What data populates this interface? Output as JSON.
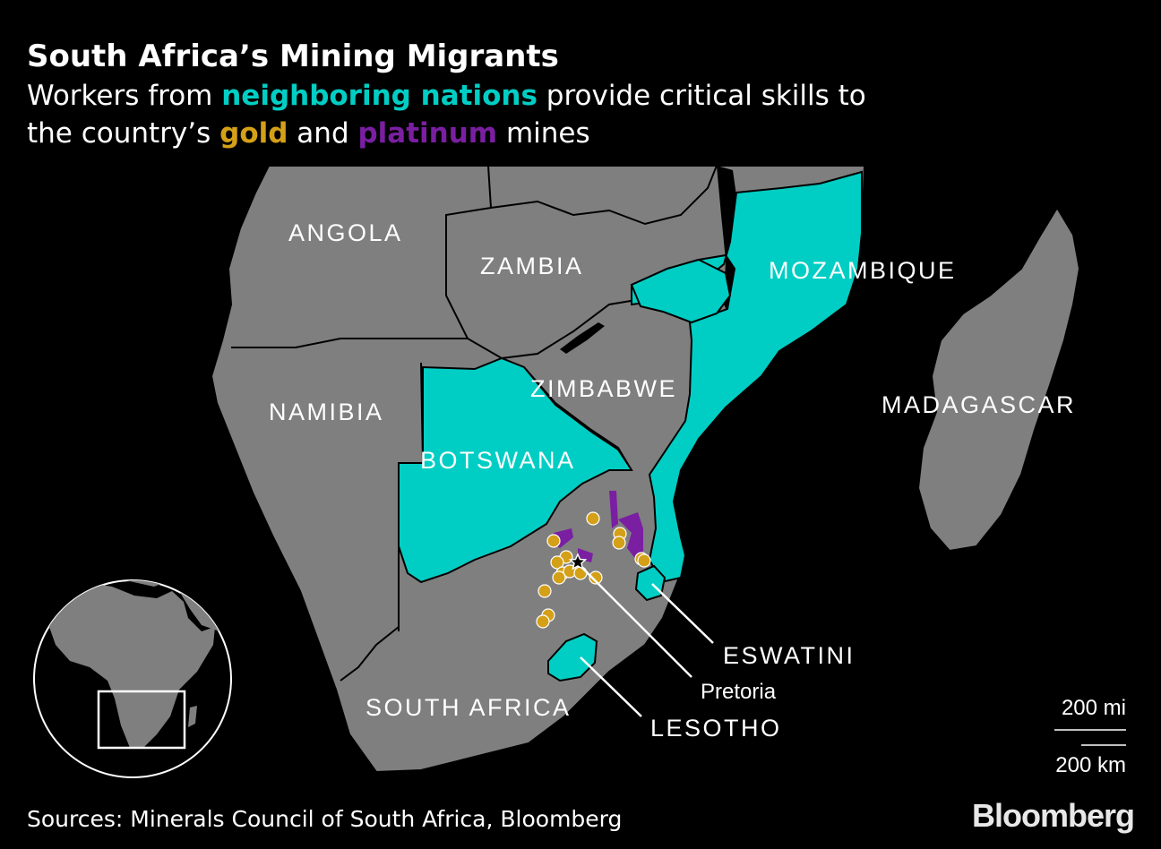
{
  "header": {
    "title": "South Africa’s Mining Migrants",
    "subtitle": {
      "part1": "Workers from ",
      "highlight_neighbors": "neighboring nations",
      "part2": " provide critical skills to",
      "part3": "the country’s ",
      "highlight_gold": "gold",
      "part4": " and ",
      "highlight_platinum": "platinum",
      "part5": " mines"
    }
  },
  "colors": {
    "background": "#000000",
    "land": "#7f7f7f",
    "border": "#000000",
    "neighbor": "#00cec4",
    "gold": "#d4a017",
    "platinum": "#7a1fa2",
    "text": "#ffffff"
  },
  "map": {
    "labels": {
      "angola": "ANGOLA",
      "zambia": "ZAMBIA",
      "mozambique": "MOZAMBIQUE",
      "zimbabwe": "ZIMBABWE",
      "namibia": "NAMIBIA",
      "botswana": "BOTSWANA",
      "madagascar": "MADAGASCAR",
      "south_africa": "SOUTH AFRICA",
      "eswatini": "ESWATINI",
      "lesotho": "LESOTHO",
      "pretoria": "Pretoria"
    },
    "neighboring_nations": [
      "Mozambique",
      "Botswana",
      "Eswatini",
      "Lesotho"
    ],
    "legend_markers": {
      "gold_mine": "gold-mine-dot",
      "platinum_mine": "platinum-area",
      "capital": "star-icon"
    },
    "scale": {
      "miles": "200 mi",
      "km": "200 km"
    }
  },
  "footer": {
    "source": "Sources: Minerals Council of South Africa, Bloomberg",
    "brand": "Bloomberg"
  }
}
